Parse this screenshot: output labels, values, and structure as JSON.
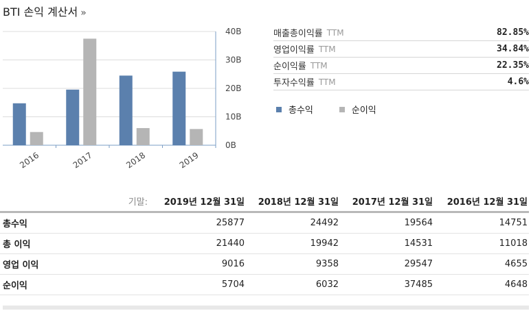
{
  "title": "BTI 손익 계산서",
  "title_arrow": "»",
  "chart_data": {
    "type": "bar",
    "categories": [
      "2016",
      "2017",
      "2018",
      "2019"
    ],
    "series": [
      {
        "name": "총수익",
        "color": "#5b80ad",
        "values": [
          14751,
          19564,
          24492,
          25877
        ]
      },
      {
        "name": "순이익",
        "color": "#b5b5b5",
        "values": [
          4648,
          37485,
          6032,
          5704
        ]
      }
    ],
    "y_ticks": [
      "0B",
      "10B",
      "20B",
      "30B",
      "40B"
    ],
    "ylim": [
      0,
      40000
    ],
    "y_axis_side": "right",
    "grid": true
  },
  "ratios": [
    {
      "label": "매출총이익률",
      "ttm": "TTM",
      "value": "82.85%"
    },
    {
      "label": "영업이익률",
      "ttm": "TTM",
      "value": "34.84%"
    },
    {
      "label": "순이익률",
      "ttm": "TTM",
      "value": "22.35%"
    },
    {
      "label": "투자수익률",
      "ttm": "TTM",
      "value": "4.6%"
    }
  ],
  "legend": [
    "총수익",
    "순이익"
  ],
  "table": {
    "period_label": "기말:",
    "columns": [
      "2019년 12월 31일",
      "2018년 12월 31일",
      "2017년 12월 31일",
      "2016년 12월 31일"
    ],
    "rows": [
      {
        "label": "총수익",
        "values": [
          "25877",
          "24492",
          "19564",
          "14751"
        ]
      },
      {
        "label": "총 이익",
        "values": [
          "21440",
          "19942",
          "14531",
          "11018"
        ]
      },
      {
        "label": "영업 이익",
        "values": [
          "9016",
          "9358",
          "29547",
          "4655"
        ]
      },
      {
        "label": "순이익",
        "values": [
          "5704",
          "6032",
          "37485",
          "4648"
        ]
      }
    ]
  }
}
